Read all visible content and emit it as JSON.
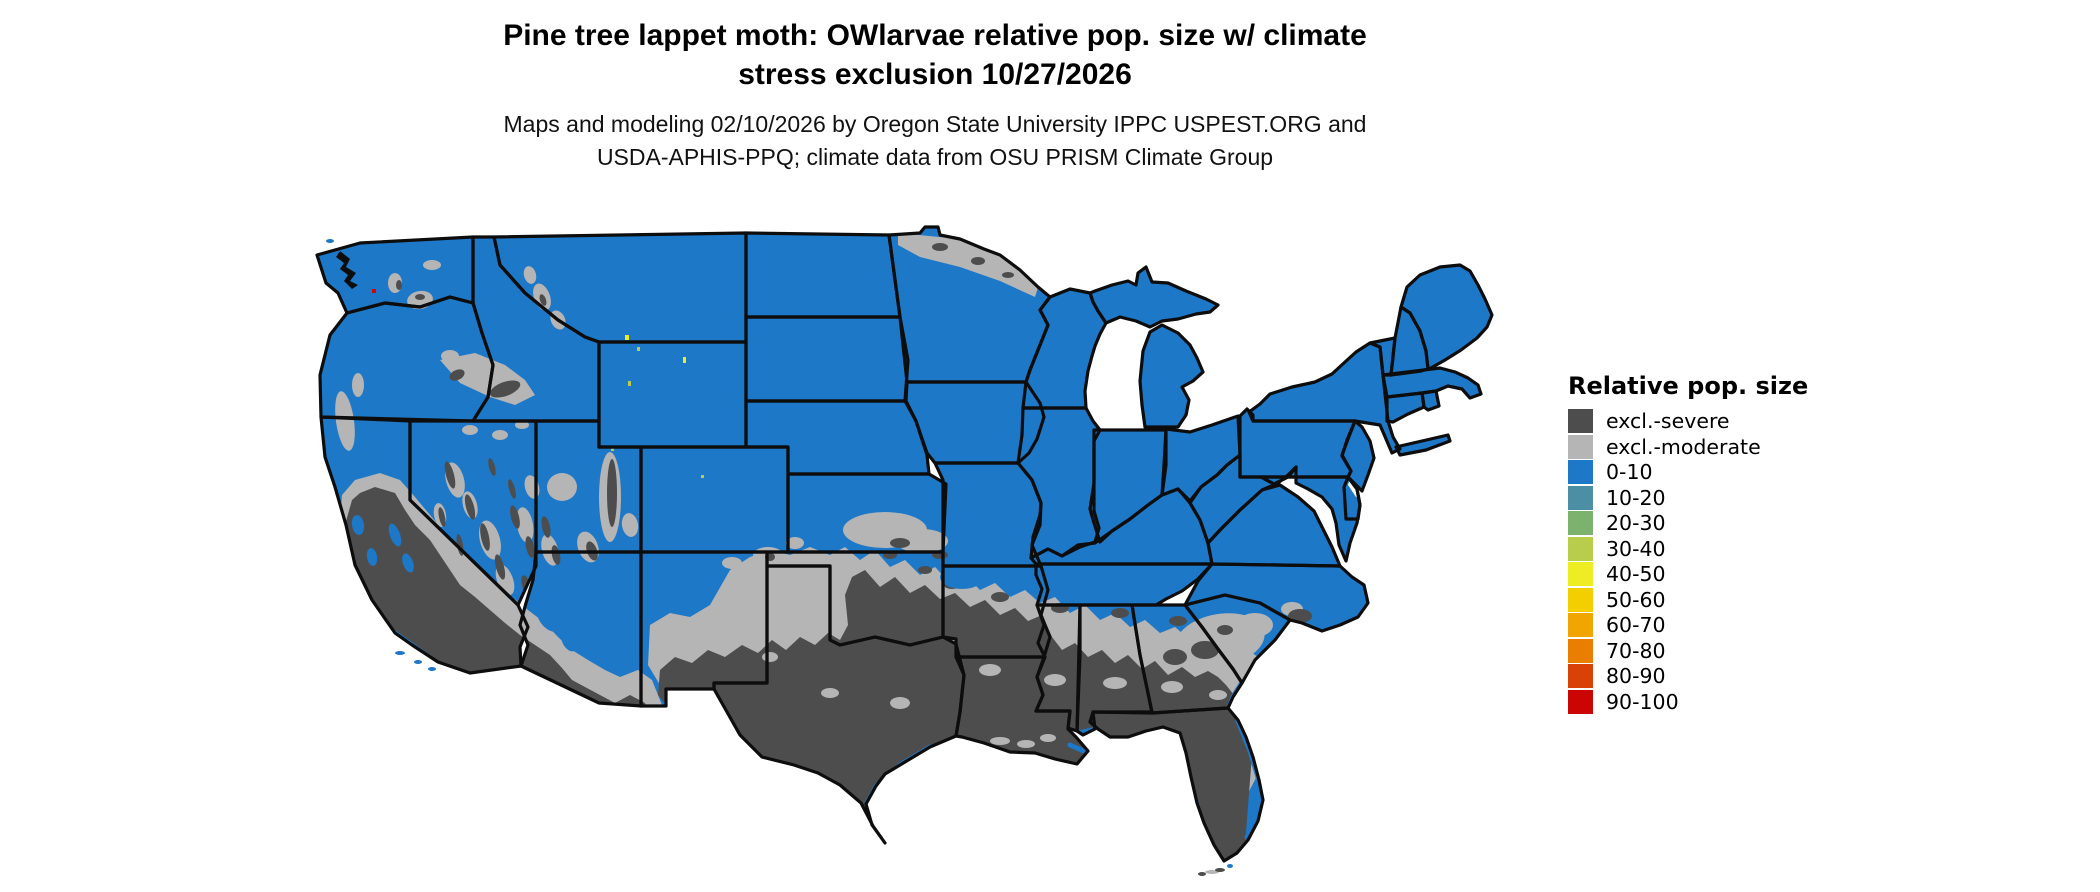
{
  "header": {
    "title_line1": "Pine tree lappet moth: OWlarvae relative pop. size w/ climate",
    "title_line2": "stress exclusion 10/27/2026",
    "subtitle_line1": "Maps and modeling 02/10/2026 by Oregon State University IPPC USPEST.ORG and",
    "subtitle_line2": "USDA-APHIS-PPQ; climate data from OSU PRISM Climate Group"
  },
  "legend": {
    "title": "Relative pop. size",
    "items": [
      {
        "key": "excl_severe",
        "label": "excl.-severe",
        "color": "#4d4d4d"
      },
      {
        "key": "excl_moderate",
        "label": "excl.-moderate",
        "color": "#b5b5b5"
      },
      {
        "key": "p0",
        "label": "0-10",
        "color": "#1e78c8"
      },
      {
        "key": "p10",
        "label": "10-20",
        "color": "#4c8fa4"
      },
      {
        "key": "p20",
        "label": "20-30",
        "color": "#7cb26d"
      },
      {
        "key": "p30",
        "label": "30-40",
        "color": "#b9cd4d"
      },
      {
        "key": "p40",
        "label": "40-50",
        "color": "#eeec22"
      },
      {
        "key": "p50",
        "label": "50-60",
        "color": "#f4cf00"
      },
      {
        "key": "p60",
        "label": "60-70",
        "color": "#f0a500"
      },
      {
        "key": "p70",
        "label": "70-80",
        "color": "#e97e00"
      },
      {
        "key": "p80",
        "label": "80-90",
        "color": "#d94206"
      },
      {
        "key": "p90",
        "label": "90-100",
        "color": "#cb0404"
      }
    ]
  },
  "map_data": {
    "type": "choropleth-raster",
    "region": "Contiguous United States",
    "date_shown": "10/27/2026",
    "visible_classes": [
      {
        "class": "0-10",
        "coverage": "Pacific Northwest, Rockies, northern Plains, Midwest, Northeast, Appalachians, mid-Atlantic"
      },
      {
        "class": "excl.-moderate",
        "coverage": "transition band through Kansas, Oklahoma, Arkansas, central Mississippi/Alabama/Georgia/South Carolina, Great Basin mountain fringes, northern Minnesota"
      },
      {
        "class": "excl.-severe",
        "coverage": "Texas, Oklahoma, Louisiana, Florida, Gulf Coast south, southern California, southern Nevada, Arizona, southern New Mexico"
      },
      {
        "class": "30-40 / 40-50",
        "coverage": "isolated pixels in high Rockies of Wyoming and Utah"
      },
      {
        "class": "90-100",
        "coverage": "single pixel in central Washington"
      }
    ]
  }
}
